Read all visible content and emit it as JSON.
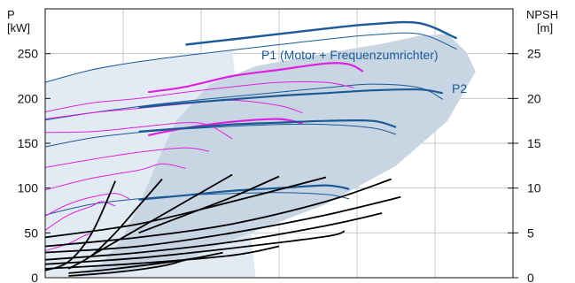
{
  "chart_data": {
    "type": "line",
    "left_axis": {
      "label_line1": "P",
      "label_line2": "[kW]",
      "ticks": [
        "0",
        "50",
        "100",
        "150",
        "200",
        "250"
      ],
      "ylim": [
        0,
        300
      ]
    },
    "right_axis": {
      "label_line1": "NPSH",
      "label_line2": "[m]",
      "ticks": [
        "0",
        "5",
        "10",
        "15",
        "20",
        "25"
      ],
      "ylim": [
        0,
        30
      ]
    },
    "xlim": [
      0,
      1
    ],
    "grid": true,
    "annotations": {
      "p1": "P1 (Motor + Frequenzumrichter)",
      "p2": "P2"
    },
    "colors": {
      "p1": "#1a5a96",
      "magenta": "#e020e0",
      "npsh": "#000000",
      "region": "#c8d5e3",
      "region_light": "#e2ebf4",
      "grid": "#c8c8c8"
    },
    "operating_region": {
      "x": [
        0.06,
        0.12,
        0.16,
        0.2,
        0.24,
        0.28,
        0.35,
        0.45,
        0.55,
        0.65,
        0.72,
        0.8,
        0.86,
        0.9,
        0.92,
        0.86,
        0.75,
        0.6,
        0.45,
        0.35,
        0.3
      ],
      "y": [
        0,
        15,
        40,
        80,
        130,
        175,
        215,
        236,
        246,
        255,
        261,
        270,
        272,
        252,
        230,
        175,
        125,
        82,
        52,
        32,
        18
      ]
    },
    "p1_series": [
      {
        "x": [
          0,
          0.1,
          0.2,
          0.3,
          0.4,
          0.5,
          0.6,
          0.7,
          0.8,
          0.85
        ],
        "y": [
          174,
          183,
          190,
          195,
          199,
          203,
          206,
          209,
          210,
          206
        ]
      },
      {
        "x": [
          0,
          0.1,
          0.2,
          0.3,
          0.4,
          0.5,
          0.6,
          0.7,
          0.75
        ],
        "y": [
          145,
          156,
          163,
          167,
          171,
          173,
          175,
          175,
          168
        ]
      },
      {
        "x": [
          0,
          0.1,
          0.2,
          0.3,
          0.4,
          0.5,
          0.6,
          0.65
        ],
        "y": [
          69,
          80,
          87,
          92,
          97,
          100,
          103,
          99
        ]
      }
    ],
    "p2_series": [
      {
        "x": [
          0,
          0.1,
          0.2,
          0.3,
          0.4,
          0.5,
          0.6,
          0.7,
          0.8,
          0.88
        ],
        "y": [
          218,
          232,
          241,
          248,
          254,
          260,
          266,
          271,
          272,
          255
        ]
      },
      {
        "x": [
          0,
          0.1,
          0.2,
          0.3,
          0.4,
          0.5,
          0.6,
          0.7,
          0.8,
          0.85
        ],
        "y": [
          176,
          184,
          191,
          197,
          202,
          207,
          212,
          216,
          212,
          199
        ]
      },
      {
        "x": [
          0,
          0.1,
          0.2,
          0.3,
          0.4,
          0.5,
          0.6,
          0.7,
          0.75
        ],
        "y": [
          146,
          156,
          162,
          166,
          169,
          171,
          171,
          167,
          160
        ]
      },
      {
        "x": [
          0,
          0.1,
          0.2,
          0.3,
          0.4,
          0.5,
          0.6,
          0.65
        ],
        "y": [
          70,
          82,
          88,
          92,
          94,
          95,
          93,
          88
        ]
      }
    ],
    "magenta_series": [
      {
        "x": [
          0.22,
          0.3,
          0.4,
          0.5,
          0.6,
          0.65,
          0.68
        ],
        "y": [
          207,
          213,
          225,
          232,
          239,
          238,
          230
        ]
      },
      {
        "x": [
          0,
          0.1,
          0.2,
          0.3,
          0.4,
          0.5,
          0.6,
          0.66
        ],
        "y": [
          185,
          195,
          200,
          207,
          213,
          218,
          218,
          212
        ]
      },
      {
        "x": [
          0,
          0.1,
          0.2,
          0.3,
          0.4,
          0.5,
          0.55
        ],
        "y": [
          177,
          184,
          189,
          194,
          198,
          192,
          184
        ]
      },
      {
        "x": [
          0.22,
          0.3,
          0.4,
          0.5,
          0.55
        ],
        "y": [
          159,
          167,
          174,
          177,
          172
        ]
      },
      {
        "x": [
          0,
          0.1,
          0.2,
          0.3,
          0.35,
          0.4
        ],
        "y": [
          162,
          163,
          168,
          173,
          170,
          155
        ]
      },
      {
        "x": [
          0,
          0.1,
          0.2,
          0.3,
          0.35
        ],
        "y": [
          123,
          132,
          140,
          145,
          141
        ]
      },
      {
        "x": [
          0,
          0.1,
          0.2,
          0.25,
          0.3
        ],
        "y": [
          98,
          111,
          120,
          127,
          122
        ]
      },
      {
        "x": [
          0,
          0.05,
          0.1,
          0.15,
          0.18
        ],
        "y": [
          69,
          82,
          90,
          94,
          88
        ]
      },
      {
        "x": [
          0,
          0.05,
          0.1,
          0.12,
          0.15
        ],
        "y": [
          53,
          70,
          80,
          85,
          80
        ]
      },
      {
        "x": [
          0,
          0.05,
          0.08,
          0.1
        ],
        "y": [
          30,
          38,
          46,
          50
        ]
      }
    ],
    "npsh_series": [
      {
        "x": [
          0,
          0.05,
          0.1,
          0.15
        ],
        "y": [
          0.8,
          1.8,
          5.0,
          10.8
        ]
      },
      {
        "x": [
          0.05,
          0.1,
          0.15,
          0.2,
          0.25
        ],
        "y": [
          1.0,
          2.5,
          5.0,
          8.0,
          11.0
        ]
      },
      {
        "x": [
          0.1,
          0.2,
          0.3,
          0.4
        ],
        "y": [
          2.5,
          5.5,
          8.5,
          11.5
        ]
      },
      {
        "x": [
          0.2,
          0.3,
          0.4,
          0.5
        ],
        "y": [
          5.0,
          7.0,
          9.0,
          11.3
        ]
      },
      {
        "x": [
          0,
          0.2,
          0.4,
          0.6
        ],
        "y": [
          4.5,
          6.0,
          8.5,
          11.2
        ]
      },
      {
        "x": [
          0,
          0.2,
          0.4,
          0.6,
          0.74
        ],
        "y": [
          3.5,
          4.5,
          6.0,
          8.5,
          11.0
        ]
      },
      {
        "x": [
          0,
          0.2,
          0.4,
          0.6,
          0.76
        ],
        "y": [
          2.8,
          3.5,
          5.0,
          7.0,
          9.0
        ]
      },
      {
        "x": [
          0,
          0.2,
          0.4,
          0.6,
          0.72
        ],
        "y": [
          2.0,
          2.8,
          4.0,
          5.8,
          7.2
        ]
      },
      {
        "x": [
          0,
          0.2,
          0.4,
          0.6,
          0.64
        ],
        "y": [
          1.5,
          2.2,
          3.3,
          4.6,
          5.2
        ]
      },
      {
        "x": [
          0,
          0.2,
          0.4,
          0.5
        ],
        "y": [
          1.0,
          1.6,
          2.5,
          3.5
        ]
      },
      {
        "x": [
          0.05,
          0.15,
          0.3,
          0.38
        ],
        "y": [
          0.5,
          1.0,
          2.0,
          2.8
        ]
      },
      {
        "x": [
          0.05,
          0.15,
          0.25,
          0.3
        ],
        "y": [
          0.2,
          0.6,
          1.3,
          2.0
        ]
      }
    ]
  }
}
